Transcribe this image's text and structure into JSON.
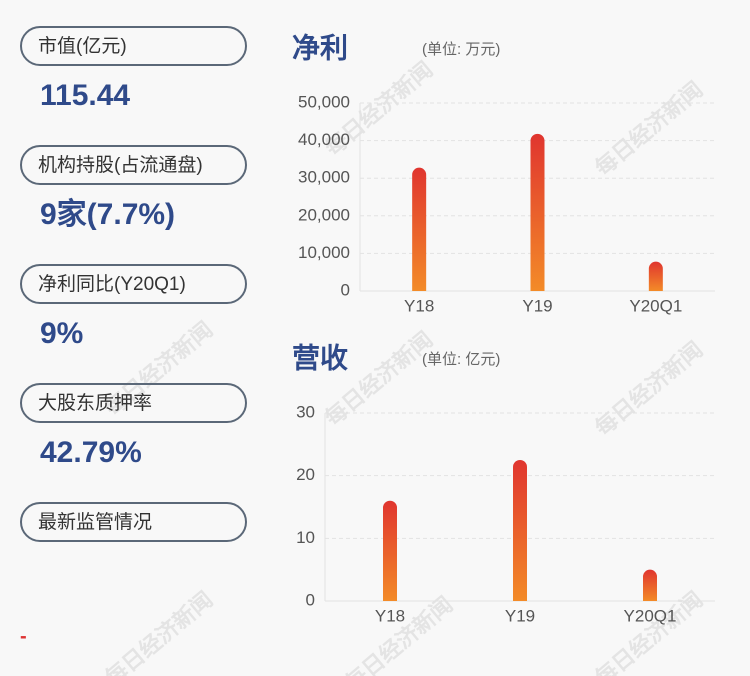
{
  "stats": [
    {
      "label": "市值(亿元)",
      "value": "115.44"
    },
    {
      "label": "机构持股(占流通盘)",
      "value": "9家(7.7%)"
    },
    {
      "label": "净利同比(Y20Q1)",
      "value": "9%"
    },
    {
      "label": "大股东质押率",
      "value": "42.79%"
    },
    {
      "label": "最新监管情况"
    }
  ],
  "footer": "-",
  "watermark": "每日经济新闻",
  "chart_data": [
    {
      "type": "bar",
      "title": "净利",
      "subtitle": "(单位: 万元)",
      "categories": [
        "Y18",
        "Y19",
        "Y20Q1"
      ],
      "values": [
        32800,
        41800,
        7800
      ],
      "colors": [
        "#e0352f",
        "#f38b28"
      ],
      "ylim": [
        0,
        50000
      ],
      "yticks": [
        0,
        {
          "value": 10000,
          "label": "10,000"
        },
        {
          "value": 20000,
          "label": "20,000"
        },
        {
          "value": 30000,
          "label": "30,000"
        },
        {
          "value": 40000,
          "label": "40,000"
        },
        {
          "value": 50000,
          "label": "50,000"
        }
      ],
      "grid": true
    },
    {
      "type": "bar",
      "title": "营收",
      "subtitle": "(单位: 亿元)",
      "categories": [
        "Y18",
        "Y19",
        "Y20Q1"
      ],
      "values": [
        16,
        22.5,
        5
      ],
      "colors": [
        "#e0352f",
        "#f38b28"
      ],
      "ylim": [
        0,
        30
      ],
      "yticks": [
        0,
        10,
        20,
        30
      ],
      "grid": true
    }
  ]
}
